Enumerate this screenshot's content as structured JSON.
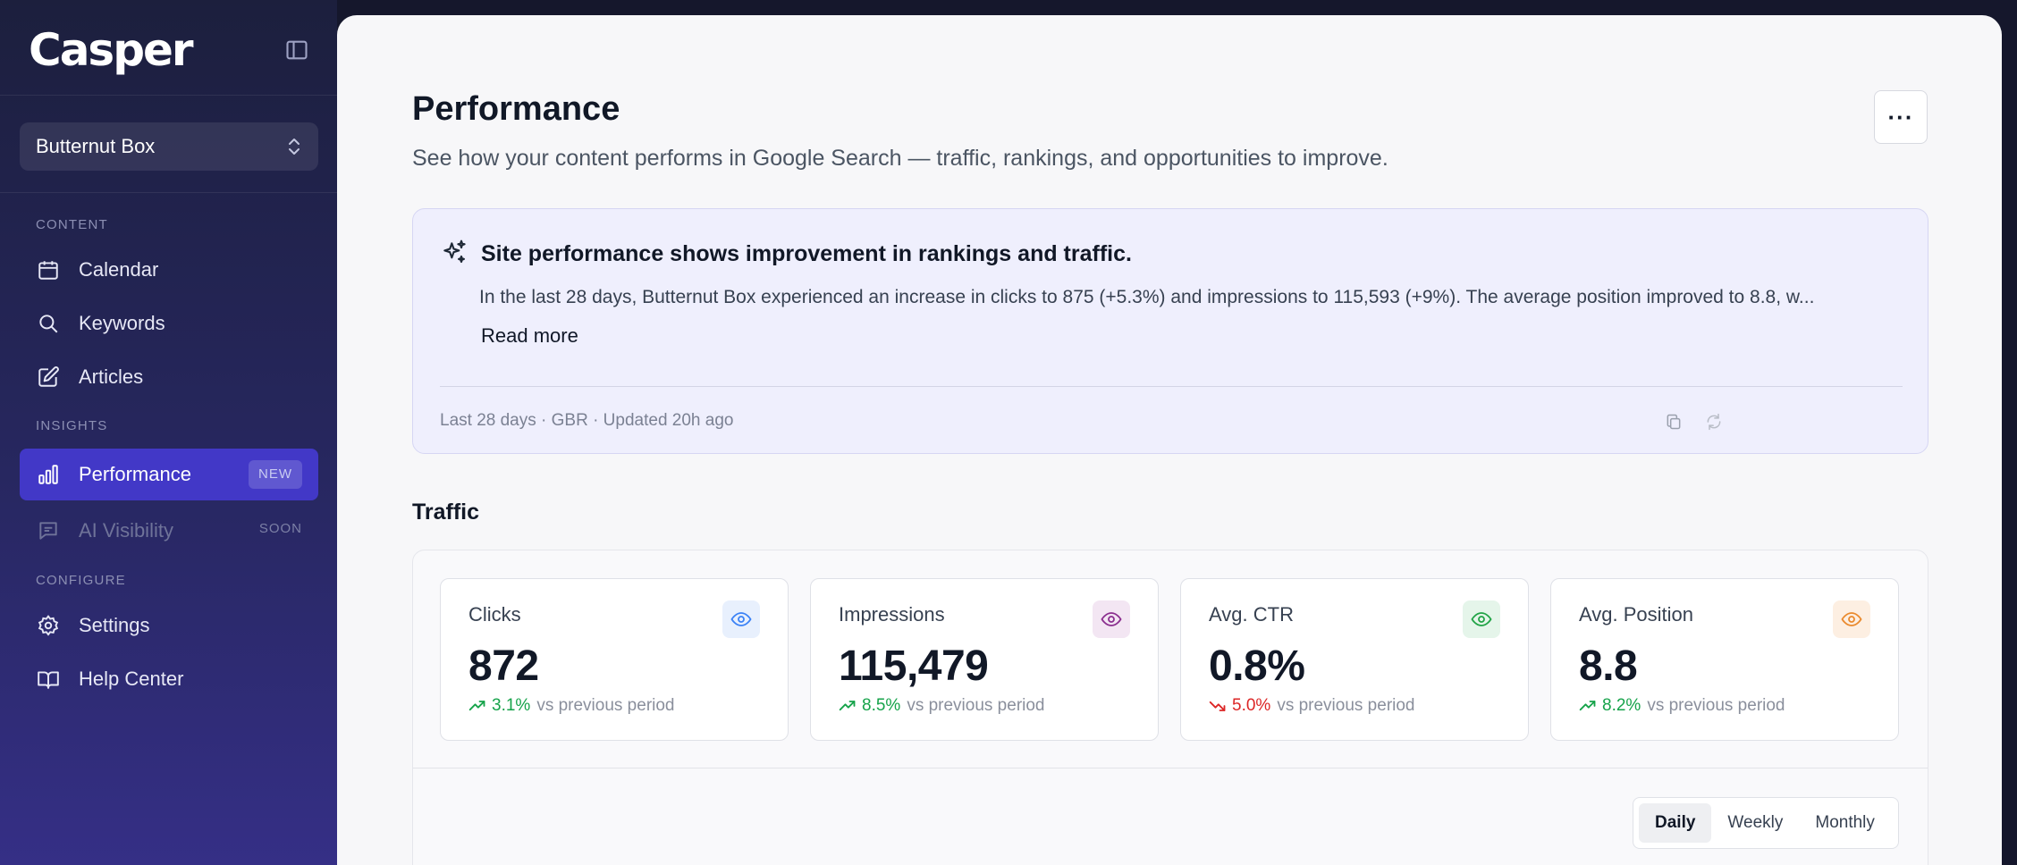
{
  "app": {
    "brand": "Casper"
  },
  "workspace": {
    "name": "Butternut Box"
  },
  "sidebar": {
    "sections": {
      "content": "CONTENT",
      "insights": "INSIGHTS",
      "configure": "CONFIGURE"
    },
    "items": [
      {
        "label": "Calendar",
        "icon": "calendar-icon"
      },
      {
        "label": "Keywords",
        "icon": "search-icon"
      },
      {
        "label": "Articles",
        "icon": "pencil-icon"
      },
      {
        "label": "Performance",
        "icon": "bar-chart-icon",
        "badge": "NEW",
        "active": true
      },
      {
        "label": "AI Visibility",
        "icon": "chat-icon",
        "badge": "SOON",
        "disabled": true
      },
      {
        "label": "Settings",
        "icon": "gear-icon"
      },
      {
        "label": "Help Center",
        "icon": "book-icon"
      }
    ]
  },
  "page": {
    "title": "Performance",
    "subtitle": "See how your content performs in Google Search — traffic, rankings, and opportunities to improve.",
    "more_label": "···"
  },
  "insight": {
    "title": "Site performance shows improvement in rankings and traffic.",
    "body": "In the last 28 days, Butternut Box experienced an increase in clicks to 875 (+5.3%) and impressions to 115,593 (+9%). The average position improved to 8.8, w...",
    "read_more": "Read more",
    "meta": "Last 28 days · GBR · Updated 20h ago"
  },
  "traffic": {
    "title": "Traffic",
    "stats": [
      {
        "label": "Clicks",
        "value": "872",
        "change": "3.1%",
        "direction": "up",
        "suffix": "vs previous period",
        "icon": "eye-icon",
        "icon_color": "#3b82f6",
        "icon_bg": "#e8f0fd"
      },
      {
        "label": "Impressions",
        "value": "115,479",
        "change": "8.5%",
        "direction": "up",
        "suffix": "vs previous period",
        "icon": "eye-icon",
        "icon_color": "#8b2f8f",
        "icon_bg": "#f3e6f3"
      },
      {
        "label": "Avg. CTR",
        "value": "0.8%",
        "change": "5.0%",
        "direction": "down",
        "suffix": "vs previous period",
        "icon": "eye-icon",
        "icon_color": "#22a447",
        "icon_bg": "#e5f5ea"
      },
      {
        "label": "Avg. Position",
        "value": "8.8",
        "change": "8.2%",
        "direction": "up",
        "suffix": "vs previous period",
        "icon": "eye-icon",
        "icon_color": "#ea8a2e",
        "icon_bg": "#fdefe2"
      }
    ],
    "granularity": {
      "options": [
        "Daily",
        "Weekly",
        "Monthly"
      ],
      "selected": "Daily"
    }
  },
  "colors": {
    "accent": "#4238c7",
    "positive": "#16a34a",
    "negative": "#dc2626"
  }
}
